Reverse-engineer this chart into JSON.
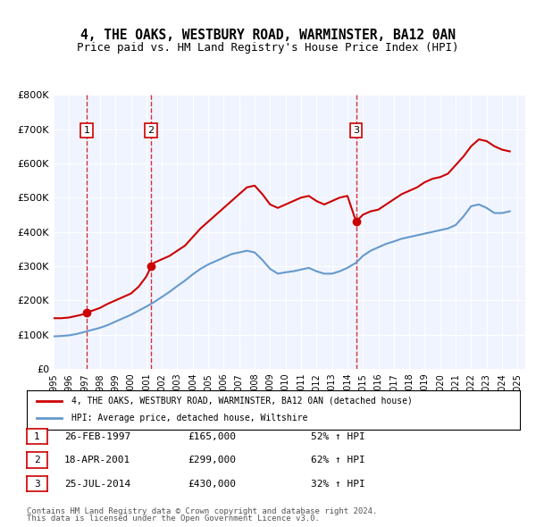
{
  "title": "4, THE OAKS, WESTBURY ROAD, WARMINSTER, BA12 0AN",
  "subtitle": "Price paid vs. HM Land Registry's House Price Index (HPI)",
  "red_label": "4, THE OAKS, WESTBURY ROAD, WARMINSTER, BA12 0AN (detached house)",
  "blue_label": "HPI: Average price, detached house, Wiltshire",
  "ylim": [
    0,
    800000
  ],
  "yticks": [
    0,
    100000,
    200000,
    300000,
    400000,
    500000,
    600000,
    700000,
    800000
  ],
  "ytick_labels": [
    "£0",
    "£100K",
    "£200K",
    "£300K",
    "£400K",
    "£500K",
    "£600K",
    "£700K",
    "£800K"
  ],
  "xlim_start": 1995.0,
  "xlim_end": 2025.5,
  "background_color": "#f0f4ff",
  "plot_bg_color": "#f0f4ff",
  "red_color": "#cc0000",
  "blue_color": "#6699cc",
  "dashed_color": "#cc0000",
  "transactions": [
    {
      "num": 1,
      "date": "26-FEB-1997",
      "year": 1997.15,
      "price": 165000,
      "pct": "52%",
      "dir": "↑"
    },
    {
      "num": 2,
      "date": "18-APR-2001",
      "year": 2001.3,
      "price": 299000,
      "pct": "62%",
      "dir": "↑"
    },
    {
      "num": 3,
      "date": "25-JUL-2014",
      "year": 2014.56,
      "price": 430000,
      "pct": "32%",
      "dir": "↑"
    }
  ],
  "footer1": "Contains HM Land Registry data © Crown copyright and database right 2024.",
  "footer2": "This data is licensed under the Open Government Licence v3.0.",
  "red_series_x": [
    1995.0,
    1995.5,
    1996.0,
    1996.5,
    1997.0,
    1997.15,
    1997.5,
    1998.0,
    1998.5,
    1999.0,
    1999.5,
    2000.0,
    2000.5,
    2001.0,
    2001.3,
    2001.5,
    2002.0,
    2002.5,
    2003.0,
    2003.5,
    2004.0,
    2004.5,
    2005.0,
    2005.5,
    2006.0,
    2006.5,
    2007.0,
    2007.5,
    2008.0,
    2008.5,
    2009.0,
    2009.5,
    2010.0,
    2010.5,
    2011.0,
    2011.5,
    2012.0,
    2012.5,
    2013.0,
    2013.5,
    2014.0,
    2014.56,
    2015.0,
    2015.5,
    2016.0,
    2016.5,
    2017.0,
    2017.5,
    2018.0,
    2018.5,
    2019.0,
    2019.5,
    2020.0,
    2020.5,
    2021.0,
    2021.5,
    2022.0,
    2022.5,
    2023.0,
    2023.5,
    2024.0,
    2024.5
  ],
  "red_series_y": [
    148000,
    148000,
    150000,
    155000,
    160000,
    165000,
    170000,
    178000,
    190000,
    200000,
    210000,
    220000,
    240000,
    270000,
    299000,
    310000,
    320000,
    330000,
    345000,
    360000,
    385000,
    410000,
    430000,
    450000,
    470000,
    490000,
    510000,
    530000,
    535000,
    510000,
    480000,
    470000,
    480000,
    490000,
    500000,
    505000,
    490000,
    480000,
    490000,
    500000,
    505000,
    430000,
    450000,
    460000,
    465000,
    480000,
    495000,
    510000,
    520000,
    530000,
    545000,
    555000,
    560000,
    570000,
    595000,
    620000,
    650000,
    670000,
    665000,
    650000,
    640000,
    635000
  ],
  "blue_series_x": [
    1995.0,
    1995.5,
    1996.0,
    1996.5,
    1997.0,
    1997.5,
    1998.0,
    1998.5,
    1999.0,
    1999.5,
    2000.0,
    2000.5,
    2001.0,
    2001.5,
    2002.0,
    2002.5,
    2003.0,
    2003.5,
    2004.0,
    2004.5,
    2005.0,
    2005.5,
    2006.0,
    2006.5,
    2007.0,
    2007.5,
    2008.0,
    2008.5,
    2009.0,
    2009.5,
    2010.0,
    2010.5,
    2011.0,
    2011.5,
    2012.0,
    2012.5,
    2013.0,
    2013.5,
    2014.0,
    2014.56,
    2015.0,
    2015.5,
    2016.0,
    2016.5,
    2017.0,
    2017.5,
    2018.0,
    2018.5,
    2019.0,
    2019.5,
    2020.0,
    2020.5,
    2021.0,
    2021.5,
    2022.0,
    2022.5,
    2023.0,
    2023.5,
    2024.0,
    2024.5
  ],
  "blue_series_y": [
    95000,
    96000,
    98000,
    102000,
    108000,
    114000,
    120000,
    128000,
    138000,
    148000,
    158000,
    170000,
    182000,
    195000,
    210000,
    225000,
    242000,
    258000,
    276000,
    292000,
    305000,
    315000,
    325000,
    335000,
    340000,
    345000,
    340000,
    318000,
    292000,
    278000,
    282000,
    285000,
    290000,
    295000,
    285000,
    278000,
    278000,
    285000,
    295000,
    310000,
    330000,
    345000,
    355000,
    365000,
    372000,
    380000,
    385000,
    390000,
    395000,
    400000,
    405000,
    410000,
    420000,
    445000,
    475000,
    480000,
    470000,
    455000,
    455000,
    460000
  ]
}
